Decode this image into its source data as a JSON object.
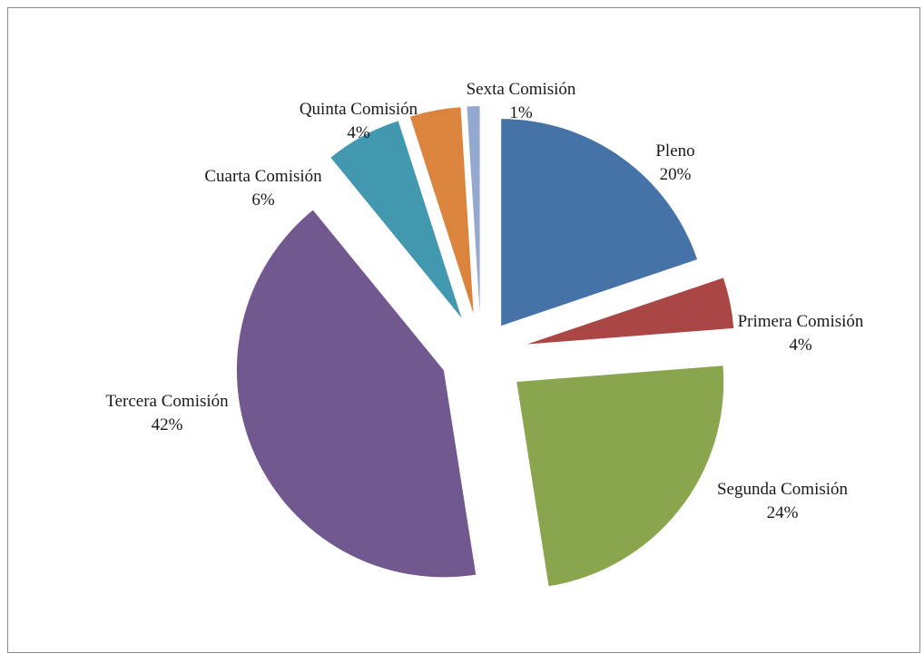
{
  "chart_data": {
    "type": "pie",
    "title": "",
    "exploded": true,
    "legend": "none",
    "slices": [
      {
        "category": "Pleno",
        "value": 20,
        "label": "20%",
        "color": "#4572A7"
      },
      {
        "category": "Primera Comisión",
        "value": 4,
        "label": "4%",
        "color": "#AA4643"
      },
      {
        "category": "Segunda Comisión",
        "value": 24,
        "label": "24%",
        "color": "#89A54E"
      },
      {
        "category": "Tercera Comisión",
        "value": 42,
        "label": "42%",
        "color": "#71588F"
      },
      {
        "category": "Cuarta Comisión",
        "value": 6,
        "label": "6%",
        "color": "#4198AF"
      },
      {
        "category": "Quinta Comisión",
        "value": 4,
        "label": "4%",
        "color": "#DB843D"
      },
      {
        "category": "Sexta Comisión",
        "value": 1,
        "label": "1%",
        "color": "#93A9CF"
      }
    ]
  }
}
